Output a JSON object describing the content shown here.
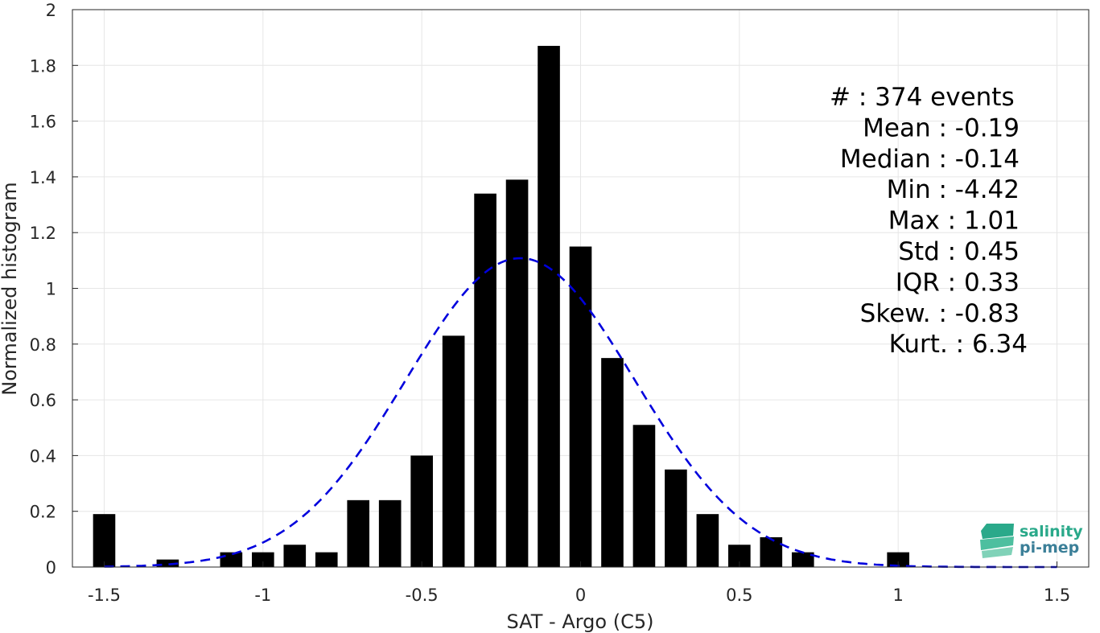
{
  "chart_data": {
    "type": "bar",
    "xlabel": "SAT - Argo (C5)",
    "ylabel": "Normalized histogram",
    "xlim": [
      -1.6,
      1.6
    ],
    "ylim": [
      0,
      2
    ],
    "grid": true,
    "xticks": [
      -1.5,
      -1,
      -0.5,
      0,
      0.5,
      1,
      1.5
    ],
    "xtick_labels": [
      "-1.5",
      "-1",
      "-0.5",
      "0",
      "0.5",
      "1",
      "1.5"
    ],
    "yticks": [
      0,
      0.2,
      0.4,
      0.6,
      0.8,
      1,
      1.2,
      1.4,
      1.6,
      1.8,
      2
    ],
    "ytick_labels": [
      "0",
      "0.2",
      "0.4",
      "0.6",
      "0.8",
      "1",
      "1.2",
      "1.4",
      "1.6",
      "1.8",
      "2"
    ],
    "bar_width": 0.07,
    "bars": [
      {
        "x": -1.5,
        "value": 0.19
      },
      {
        "x": -1.3,
        "value": 0.027
      },
      {
        "x": -1.1,
        "value": 0.053
      },
      {
        "x": -1.0,
        "value": 0.053
      },
      {
        "x": -0.9,
        "value": 0.08
      },
      {
        "x": -0.8,
        "value": 0.053
      },
      {
        "x": -0.7,
        "value": 0.24
      },
      {
        "x": -0.6,
        "value": 0.24
      },
      {
        "x": -0.5,
        "value": 0.4
      },
      {
        "x": -0.4,
        "value": 0.83
      },
      {
        "x": -0.3,
        "value": 1.34
      },
      {
        "x": -0.2,
        "value": 1.39
      },
      {
        "x": -0.1,
        "value": 1.87
      },
      {
        "x": 0.0,
        "value": 1.15
      },
      {
        "x": 0.1,
        "value": 0.75
      },
      {
        "x": 0.2,
        "value": 0.51
      },
      {
        "x": 0.3,
        "value": 0.35
      },
      {
        "x": 0.4,
        "value": 0.19
      },
      {
        "x": 0.5,
        "value": 0.08
      },
      {
        "x": 0.6,
        "value": 0.107
      },
      {
        "x": 0.7,
        "value": 0.053
      },
      {
        "x": 1.0,
        "value": 0.053
      }
    ],
    "bar_color": "#000000",
    "fit_curve": {
      "type": "normal",
      "mean": -0.19,
      "std": 0.36,
      "x_range": [
        -1.5,
        1.5
      ],
      "color": "#0000dd",
      "style": "dashed"
    },
    "stats": [
      {
        "label": "#  : 374 events",
        "anchor": "start"
      },
      {
        "label": "Mean : -0.19",
        "anchor": "end"
      },
      {
        "label": "Median : -0.14",
        "anchor": "end"
      },
      {
        "label": "Min : -4.42",
        "anchor": "end"
      },
      {
        "label": "Max : 1.01",
        "anchor": "end"
      },
      {
        "label": "Std : 0.45",
        "anchor": "end"
      },
      {
        "label": "IQR : 0.33",
        "anchor": "end"
      },
      {
        "label": "Skew. : -0.83",
        "anchor": "end"
      },
      {
        "label": "Kurt. : 6.34",
        "anchor": "end"
      }
    ]
  },
  "logo": {
    "line1": "salinity",
    "line2": "pi-mep",
    "color1": "#2aa98a",
    "color2": "#3b7f98"
  }
}
